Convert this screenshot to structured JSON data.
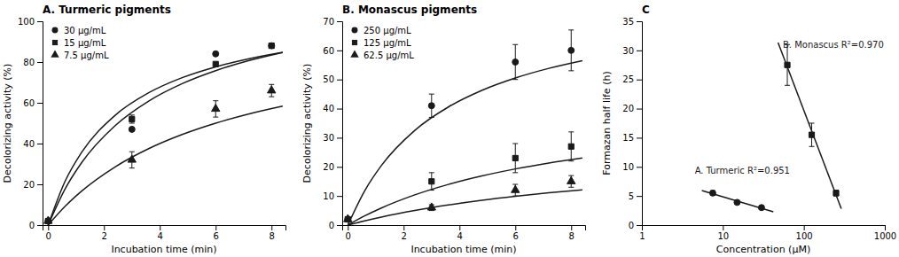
{
  "chart_data": [
    {
      "type": "scatter",
      "title": "A. Turmeric pigments",
      "xlabel": "Incubation time (min)",
      "ylabel": "Decolorizing activity (%)",
      "xlim": [
        -0.2,
        8.5
      ],
      "ylim": [
        0,
        100
      ],
      "xticks": [
        0,
        2,
        4,
        6,
        8
      ],
      "yticks": [
        0,
        20,
        40,
        60,
        80,
        100
      ],
      "legend": "upper left",
      "color": "#1a1a1a",
      "series": [
        {
          "type": "line",
          "line_style": "solid",
          "x": [
            0,
            0.6,
            1.2,
            2.4,
            3.6,
            4.8,
            6,
            7.2,
            8.4
          ],
          "values": [
            0,
            21.29,
            35.68,
            53.88,
            64.92,
            72.33,
            77.65,
            81.65,
            84.77
          ]
        },
        {
          "type": "scatter",
          "name": "30 μg/mL",
          "marker": "circle",
          "x": [
            0,
            3,
            6,
            8
          ],
          "values": [
            2,
            47,
            84,
            88
          ],
          "errors": [
            0,
            0,
            0,
            0
          ]
        },
        {
          "type": "line",
          "line_style": "solid",
          "x": [
            0,
            0.6,
            1.2,
            2.4,
            3.6,
            4.8,
            6,
            7.2,
            8.4
          ],
          "values": [
            0,
            17.56,
            30.64,
            48.81,
            60.85,
            69.4,
            75.79,
            80.75,
            84.71
          ]
        },
        {
          "type": "scatter",
          "name": "15 μg/mL",
          "marker": "square",
          "x": [
            0,
            3,
            6,
            8
          ],
          "values": [
            2,
            52,
            79,
            88
          ],
          "errors": [
            0,
            2,
            0,
            0
          ]
        },
        {
          "type": "line",
          "line_style": "solid",
          "x": [
            0,
            0.6,
            1.2,
            2.4,
            3.6,
            4.8,
            6,
            7.2,
            8.4
          ],
          "values": [
            0,
            9.09,
            16.67,
            28.57,
            37.5,
            44.44,
            50,
            54.55,
            58.33
          ]
        },
        {
          "type": "scatter",
          "name": "7.5 μg/mL",
          "marker": "triangle",
          "x": [
            0,
            3,
            6,
            8
          ],
          "values": [
            2,
            32,
            57,
            66
          ],
          "errors": [
            0,
            4,
            4,
            3
          ]
        }
      ]
    },
    {
      "type": "scatter",
      "title": "B. Monascus pigments",
      "xlabel": "Incubation time (min)",
      "ylabel": "Decolorizing activity (%)",
      "xlim": [
        -0.2,
        8.5
      ],
      "ylim": [
        0,
        70
      ],
      "xticks": [
        0,
        2,
        4,
        6,
        8
      ],
      "yticks": [
        0,
        10,
        20,
        30,
        40,
        50,
        60,
        70
      ],
      "legend": "upper left",
      "color": "#1a1a1a",
      "series": [
        {
          "type": "line",
          "line_style": "solid",
          "x": [
            0,
            0.6,
            1.2,
            2.4,
            3.6,
            4.8,
            6,
            7.2,
            8.4
          ],
          "values": [
            0,
            11.71,
            20.43,
            32.54,
            40.56,
            46.27,
            50.53,
            53.83,
            56.47
          ]
        },
        {
          "type": "scatter",
          "name": "250 μg/mL",
          "marker": "circle",
          "x": [
            0,
            3,
            6,
            8
          ],
          "values": [
            2,
            41,
            56,
            60
          ],
          "errors": [
            0,
            4,
            6,
            7
          ]
        },
        {
          "type": "line",
          "line_style": "solid",
          "x": [
            0,
            0.6,
            1.2,
            2.4,
            3.6,
            4.8,
            6,
            7.2,
            8.4
          ],
          "values": [
            0,
            3.14,
            5.87,
            10.38,
            13.97,
            16.88,
            19.29,
            21.32,
            23.05
          ]
        },
        {
          "type": "scatter",
          "name": "125 μg/mL",
          "marker": "square",
          "x": [
            0,
            3,
            6,
            8
          ],
          "values": [
            2,
            15,
            23,
            27
          ],
          "errors": [
            0,
            3,
            5,
            5
          ]
        },
        {
          "type": "line",
          "line_style": "solid",
          "x": [
            0,
            0.6,
            1.2,
            2.4,
            3.6,
            4.8,
            6,
            7.2,
            8.4
          ],
          "values": [
            0,
            1.45,
            2.75,
            5.01,
            6.9,
            8.51,
            9.88,
            11.08,
            12.12
          ]
        },
        {
          "type": "scatter",
          "name": "62.5 μg/mL",
          "marker": "triangle",
          "x": [
            0,
            3,
            6,
            8
          ],
          "values": [
            2,
            6,
            12,
            15
          ],
          "errors": [
            0,
            1,
            2,
            2
          ]
        }
      ]
    },
    {
      "type": "scatter",
      "title": "C",
      "xlabel": "Concentration  (μM)",
      "ylabel": "Formazan half life (h)",
      "log": "x",
      "xlim": [
        1,
        1000
      ],
      "ylim": [
        0,
        35
      ],
      "xticks": [
        1,
        10,
        100,
        1000
      ],
      "yticks": [
        0,
        5,
        10,
        15,
        20,
        25,
        30,
        35
      ],
      "color": "#1a1a1a",
      "series": [
        {
          "type": "line",
          "line_style": "solid",
          "x": [
            5.5,
            42
          ],
          "values": [
            5.942655,
            2.276549
          ]
        },
        {
          "type": "scatter",
          "marker": "circle",
          "x": [
            7.5,
            15,
            30
          ],
          "values": [
            5.5,
            3.9,
            3.0
          ],
          "errors": [
            0.4,
            0,
            0
          ]
        },
        {
          "type": "line",
          "line_style": "solid",
          "x": [
            48,
            290
          ],
          "values": [
            31.35571,
            2.8113
          ]
        },
        {
          "type": "scatter",
          "marker": "square",
          "x": [
            62.5,
            125,
            250
          ],
          "values": [
            27.5,
            15.5,
            5.5
          ],
          "errors": [
            3.5,
            2.0,
            0.5
          ]
        }
      ],
      "annotations": [
        {
          "text": "A. Turmeric R²=0.951",
          "x": 4.5,
          "y": 8.8
        },
        {
          "text": "B. Monascus R²=0.970",
          "x": 55,
          "y": 30.5
        }
      ]
    }
  ]
}
